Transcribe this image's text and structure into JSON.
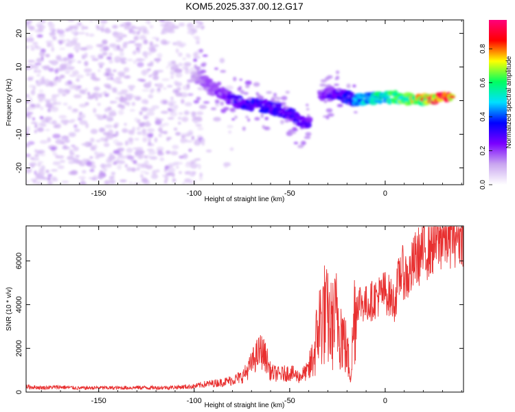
{
  "title": "KOM5.2025.337.00.12.G17",
  "chart_data": [
    {
      "type": "heatmap",
      "name": "spectrogram",
      "xlabel": "Height of straight line (km)",
      "ylabel": "Frequency (Hz)",
      "xlim": [
        -188,
        41
      ],
      "ylim": [
        -25,
        24
      ],
      "xticks": [
        -150,
        -100,
        -50,
        0
      ],
      "yticks": [
        -20,
        -10,
        0,
        10,
        20
      ],
      "colorbar": {
        "label": "Normalized spectral amplitude",
        "range": [
          0,
          0.97
        ],
        "ticks": [
          "0.0",
          "0.2",
          "0.4",
          "0.6",
          "0.8"
        ],
        "stops": [
          "#ffffff",
          "#c9a6f0",
          "#7a00ff",
          "#0000ff",
          "#00e0ff",
          "#00ff60",
          "#ffff00",
          "#ff0000",
          "#ff007a"
        ]
      },
      "ridge": [
        {
          "x": -100,
          "freq": 7,
          "amp": 0.12
        },
        {
          "x": -90,
          "freq": 4,
          "amp": 0.2
        },
        {
          "x": -80,
          "freq": 0,
          "amp": 0.28
        },
        {
          "x": -70,
          "freq": -1,
          "amp": 0.34
        },
        {
          "x": -60,
          "freq": -2,
          "amp": 0.32
        },
        {
          "x": -50,
          "freq": -4,
          "amp": 0.3
        },
        {
          "x": -40,
          "freq": -7,
          "amp": 0.26
        },
        {
          "x": -34,
          "freq": 2,
          "amp": 0.22
        },
        {
          "x": -25,
          "freq": 2,
          "amp": 0.28
        },
        {
          "x": -15,
          "freq": 0,
          "amp": 0.45
        },
        {
          "x": -5,
          "freq": 1,
          "amp": 0.55
        },
        {
          "x": 5,
          "freq": 1,
          "amp": 0.6
        },
        {
          "x": 15,
          "freq": 0,
          "amp": 0.7
        },
        {
          "x": 25,
          "freq": 1,
          "amp": 0.85
        },
        {
          "x": 35,
          "freq": 1,
          "amp": 0.9
        }
      ]
    },
    {
      "type": "line",
      "name": "snr",
      "xlabel": "Height of straight line (km)",
      "ylabel": "SNR (10 * v/v)",
      "xlim": [
        -188,
        41
      ],
      "ylim": [
        0,
        7600
      ],
      "xticks": [
        -150,
        -100,
        -50,
        0
      ],
      "yticks": [
        0,
        2000,
        4000,
        6000
      ],
      "color": "#e83030",
      "series": [
        {
          "x": -188,
          "y": 250
        },
        {
          "x": -180,
          "y": 200
        },
        {
          "x": -170,
          "y": 230
        },
        {
          "x": -160,
          "y": 180
        },
        {
          "x": -150,
          "y": 200
        },
        {
          "x": -140,
          "y": 190
        },
        {
          "x": -130,
          "y": 210
        },
        {
          "x": -120,
          "y": 200
        },
        {
          "x": -110,
          "y": 220
        },
        {
          "x": -100,
          "y": 260
        },
        {
          "x": -95,
          "y": 350
        },
        {
          "x": -90,
          "y": 400
        },
        {
          "x": -85,
          "y": 450
        },
        {
          "x": -80,
          "y": 550
        },
        {
          "x": -75,
          "y": 700
        },
        {
          "x": -72,
          "y": 1000
        },
        {
          "x": -68,
          "y": 1600
        },
        {
          "x": -65,
          "y": 1900
        },
        {
          "x": -62,
          "y": 1500
        },
        {
          "x": -60,
          "y": 900
        },
        {
          "x": -55,
          "y": 800
        },
        {
          "x": -50,
          "y": 900
        },
        {
          "x": -45,
          "y": 700
        },
        {
          "x": -40,
          "y": 1000
        },
        {
          "x": -37,
          "y": 1800
        },
        {
          "x": -35,
          "y": 3000
        },
        {
          "x": -32,
          "y": 3600
        },
        {
          "x": -28,
          "y": 3000
        },
        {
          "x": -25,
          "y": 3500
        },
        {
          "x": -22,
          "y": 2500
        },
        {
          "x": -20,
          "y": 1800
        },
        {
          "x": -18,
          "y": 800
        },
        {
          "x": -16,
          "y": 3800
        },
        {
          "x": -14,
          "y": 4200
        },
        {
          "x": -10,
          "y": 4000
        },
        {
          "x": -5,
          "y": 4300
        },
        {
          "x": 0,
          "y": 4600
        },
        {
          "x": 5,
          "y": 4100
        },
        {
          "x": 8,
          "y": 5600
        },
        {
          "x": 12,
          "y": 5200
        },
        {
          "x": 16,
          "y": 6100
        },
        {
          "x": 20,
          "y": 6400
        },
        {
          "x": 25,
          "y": 6800
        },
        {
          "x": 30,
          "y": 7100
        },
        {
          "x": 35,
          "y": 7300
        },
        {
          "x": 41,
          "y": 7400
        }
      ]
    }
  ]
}
